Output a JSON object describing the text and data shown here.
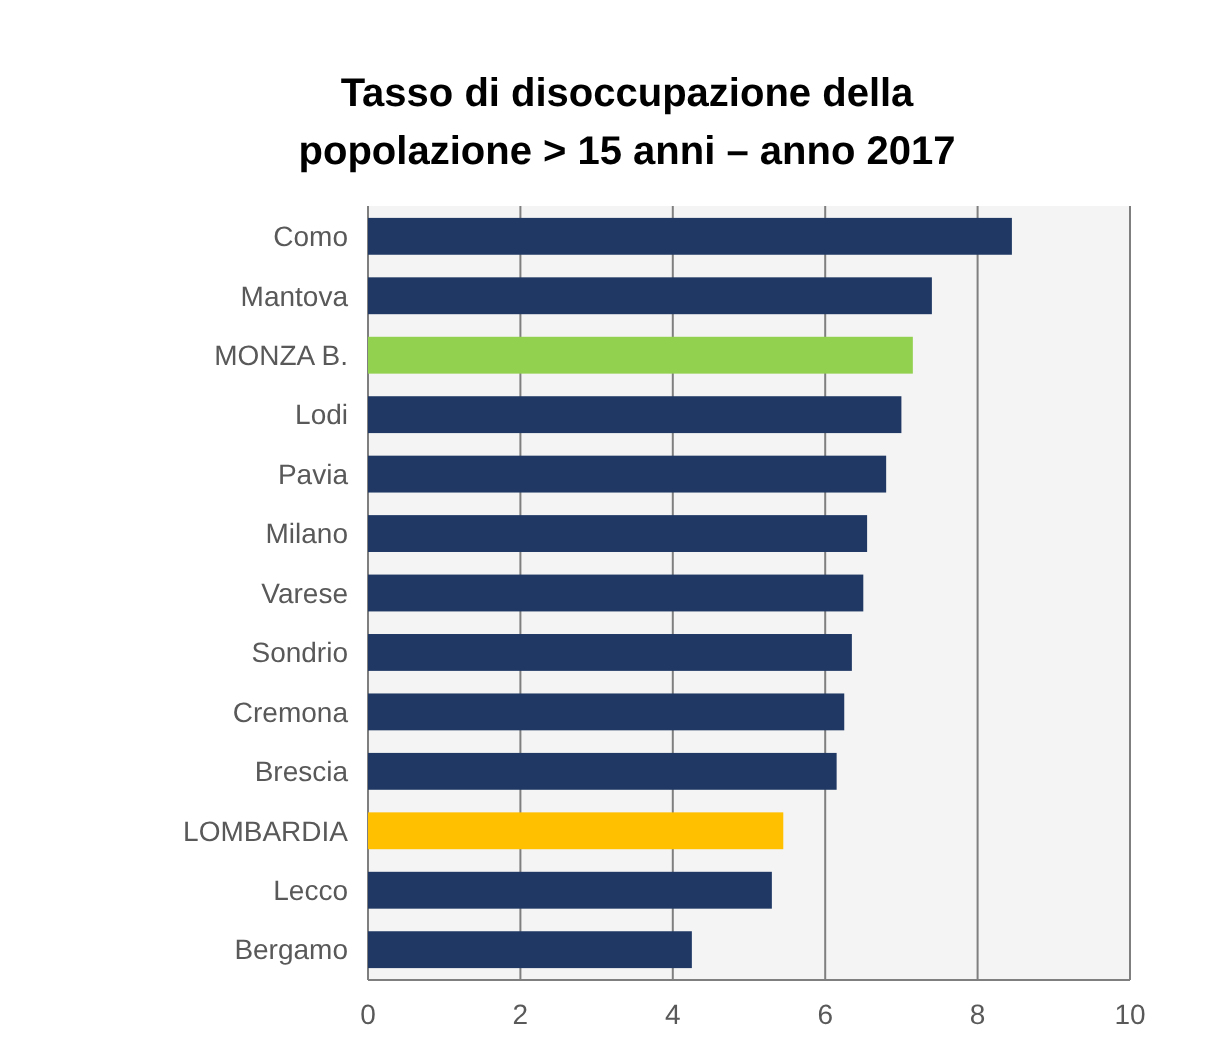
{
  "chart_data": {
    "type": "bar",
    "orientation": "horizontal",
    "title": "Tasso di disoccupazione della\npopolazione > 15 anni – anno 2017",
    "categories": [
      "Como",
      "Mantova",
      "MONZA B.",
      "Lodi",
      "Pavia",
      "Milano",
      "Varese",
      "Sondrio",
      "Cremona",
      "Brescia",
      "LOMBARDIA",
      "Lecco",
      "Bergamo"
    ],
    "values": [
      8.45,
      7.4,
      7.15,
      7.0,
      6.8,
      6.55,
      6.5,
      6.35,
      6.25,
      6.15,
      5.45,
      5.3,
      4.25
    ],
    "colors": [
      "#1f3864",
      "#1f3864",
      "#92d050",
      "#1f3864",
      "#1f3864",
      "#1f3864",
      "#1f3864",
      "#1f3864",
      "#1f3864",
      "#1f3864",
      "#ffc000",
      "#1f3864",
      "#1f3864"
    ],
    "xlim": [
      0,
      10
    ],
    "xticks": [
      0,
      2,
      4,
      6,
      8,
      10
    ],
    "grid": "x"
  }
}
